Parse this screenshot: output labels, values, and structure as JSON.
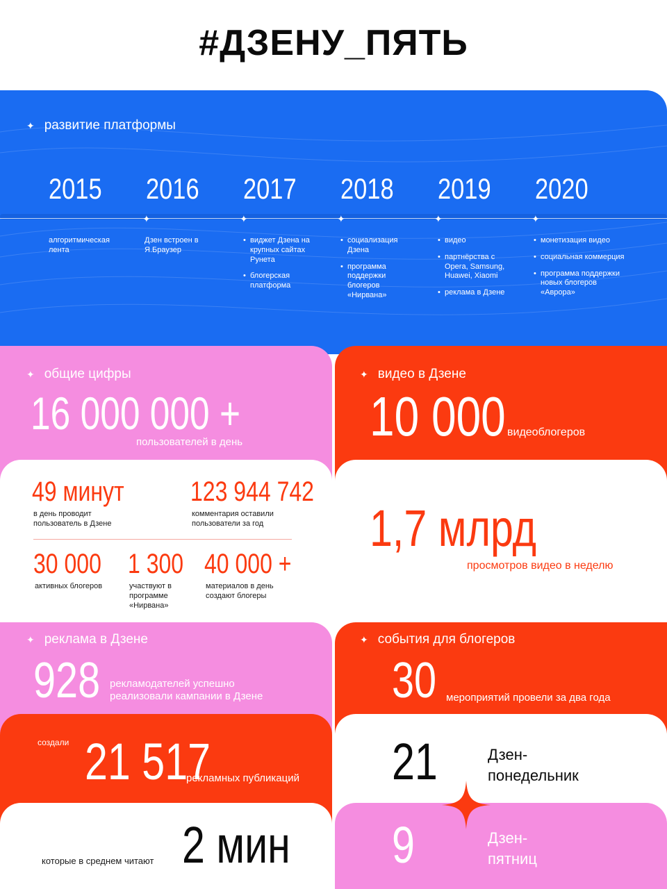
{
  "title": "#ДЗЕНУ_ПЯТЬ",
  "colors": {
    "blue": "#1a6cf2",
    "pink": "#f58de0",
    "red": "#fb3a10",
    "white": "#ffffff",
    "dark": "#0b0b0b"
  },
  "platform": {
    "label": "развитие платформы",
    "years": [
      "2015",
      "2016",
      "2017",
      "2018",
      "2019",
      "2020"
    ],
    "items": [
      [
        "алгоритмическая лента"
      ],
      [
        "Дзен встроен в Я.Браузер"
      ],
      [
        "виджет Дзена на крупных сайтах Рунета",
        "блогерская платформа"
      ],
      [
        "социализация Дзена",
        "программа поддержки блогеров «Нирвана»"
      ],
      [
        "видео",
        "партнёрства с Opera, Samsung, Huawei, Xiaomi",
        "реклама в Дзене"
      ],
      [
        "монетизация видео",
        "социальная коммерция",
        "программа поддержки новых блогеров «Аврора»"
      ]
    ]
  },
  "general": {
    "label": "общие цифры",
    "main_value": "16 000 000 +",
    "main_caption": "пользователей в день",
    "stats": [
      {
        "value": "49 минут",
        "caption": "в день проводит пользователь в Дзене"
      },
      {
        "value": "123 944 742",
        "caption": "комментария оставили пользователи за год"
      },
      {
        "value": "30 000",
        "caption": "активных блогеров"
      },
      {
        "value": "1 300",
        "caption": "участвуют в программе «Нирвана»"
      },
      {
        "value": "40 000 +",
        "caption": "материалов в день создают блогеры"
      }
    ]
  },
  "video": {
    "label": "видео в Дзене",
    "main_value": "10 000",
    "main_caption": "видеоблогеров",
    "views_value": "1,7 млрд",
    "views_caption": "просмотров видео в неделю"
  },
  "ads": {
    "label": "реклама в Дзене",
    "advertisers_value": "928",
    "advertisers_caption": "рекламодателей успешно реализовали кампании в Дзене",
    "created_prefix": "создали",
    "publications_value": "21 517",
    "publications_caption": "рекламных публикаций",
    "read_caption": "которые в среднем читают",
    "read_value": "2 мин"
  },
  "events": {
    "label": "события для блогеров",
    "events_value": "30",
    "events_caption": "мероприятий провели за два года",
    "monday_value": "21",
    "monday_label": "Дзен-понедельник",
    "friday_value": "9",
    "friday_label": "Дзен-пятниц"
  }
}
